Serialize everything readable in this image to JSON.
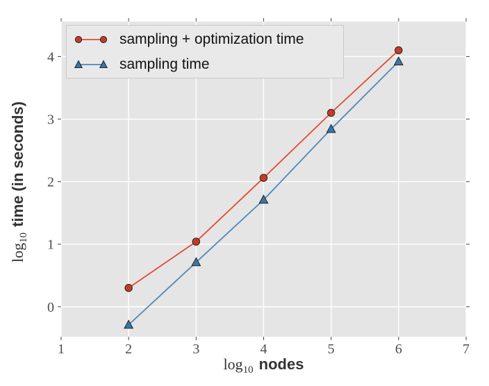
{
  "colors": {
    "figure_bg": "#ffffff",
    "plot_bg": "#e5e5e5",
    "grid": "#ffffff",
    "tick_mark": "#555555",
    "tick_text": "#4d4d4d",
    "axis_label_text": "#333333",
    "legend_bg": "#e9e9e9",
    "legend_border": "#c9c9c9",
    "legend_text": "#111111",
    "marker_edge": "#222222"
  },
  "axis_labels": {
    "x_log": "log",
    "x_sub": "10",
    "x_word": "nodes",
    "y_log": "log",
    "y_sub": "10",
    "y_word": "time (in seconds)"
  },
  "chart_data": {
    "type": "line",
    "title": "",
    "xlabel": "log10 nodes",
    "ylabel": "log10 time (in seconds)",
    "xlim": [
      1,
      7
    ],
    "ylim": [
      -0.48,
      4.56
    ],
    "xticks": [
      1,
      2,
      3,
      4,
      5,
      6,
      7
    ],
    "yticks": [
      0,
      1,
      2,
      3,
      4
    ],
    "grid": true,
    "legend_position": "upper left",
    "x": [
      2,
      3,
      4,
      5,
      6
    ],
    "series": [
      {
        "name": "sampling + optimization time",
        "marker": "circle",
        "line_color": "#E24A33",
        "marker_fill": "#C93A26",
        "values": [
          0.3,
          1.04,
          2.06,
          3.1,
          4.1
        ]
      },
      {
        "name": "sampling time",
        "marker": "triangle-up",
        "line_color": "#4A89BD",
        "marker_fill": "#3878A8",
        "values": [
          -0.29,
          0.71,
          1.71,
          2.84,
          3.92
        ]
      }
    ]
  }
}
